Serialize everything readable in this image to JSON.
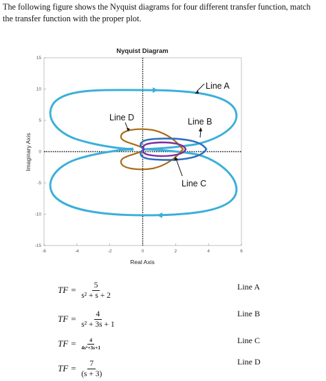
{
  "question": {
    "line1": "The following figure shows the Nyquist diagrams for four different transfer function, match",
    "line2": "the transfer function with the proper plot."
  },
  "chart_data": {
    "type": "line",
    "title": "Nyquist Diagram",
    "xlabel": "Real Axis",
    "ylabel": "Imaginary Axis",
    "xlim": [
      -6,
      6
    ],
    "ylim": [
      -15,
      15
    ],
    "xticks": [
      -6,
      -4,
      -2,
      0,
      2,
      4,
      6
    ],
    "yticks": [
      15,
      10,
      5,
      0,
      -5,
      -10,
      -15
    ],
    "xtick_labels": [
      "-6",
      "-4",
      "-2",
      "0",
      "2",
      "4",
      "6"
    ],
    "ytick_labels": [
      "15",
      "10",
      "5",
      "0",
      "-5",
      "-10",
      "-15"
    ],
    "grid": false,
    "annotations": [
      "Line A",
      "Line B",
      "Line C",
      "Line D"
    ],
    "series": [
      {
        "name": "Line A",
        "color": "#3bafda",
        "x": [
          -5,
          -4,
          -2,
          0,
          1,
          2.5,
          4,
          5,
          5.6,
          5.8,
          5.4,
          4,
          2.5,
          1,
          0
        ],
        "y": [
          4,
          6.5,
          8.8,
          9.6,
          9.6,
          9.2,
          8,
          6.4,
          4.2,
          2,
          1,
          0.4,
          0.2,
          0.05,
          0
        ]
      },
      {
        "name": "Line B",
        "color": "#2e6fbf",
        "x": [
          0,
          0.4,
          1.2,
          2.5,
          3.6,
          4.1,
          3.6,
          2.5,
          1.2,
          0.4,
          0
        ],
        "y": [
          0,
          1.1,
          1.8,
          2,
          1.6,
          0,
          -1.6,
          -2,
          -1.8,
          -1.1,
          0
        ]
      },
      {
        "name": "Line C",
        "color": "#7a2e9e",
        "x": [
          0,
          0.4,
          1.1,
          2,
          2.7,
          3.2,
          2.7,
          2,
          1.1,
          0.4,
          0
        ],
        "y": [
          0,
          0.9,
          1.2,
          1.3,
          1.1,
          0,
          -1.1,
          -1.3,
          -1.2,
          -0.9,
          0
        ]
      },
      {
        "name": "Line D",
        "color": "#a86c16",
        "x": [
          0,
          0.3,
          1,
          1.9,
          2.6,
          2.9,
          2.6,
          1.9,
          1,
          0.3,
          0
        ],
        "y": [
          0,
          2.8,
          3.3,
          2.9,
          1.6,
          0,
          -1.6,
          -2.9,
          -3.3,
          -2.8,
          0
        ]
      }
    ]
  },
  "equations": [
    {
      "lhs": "TF =",
      "numerator": "5",
      "denominator": "s² + s + 2",
      "label": "Line A"
    },
    {
      "lhs": "TF =",
      "numerator": "4",
      "denominator": "s² + 3s + 1",
      "label": "Line B"
    },
    {
      "lhs": "TF =",
      "numerator": "4",
      "denominator": "4s²+3s+1",
      "label": "Line C"
    },
    {
      "lhs": "TF =",
      "numerator": "7",
      "denominator": "(s + 3)",
      "label": "Line D"
    }
  ]
}
